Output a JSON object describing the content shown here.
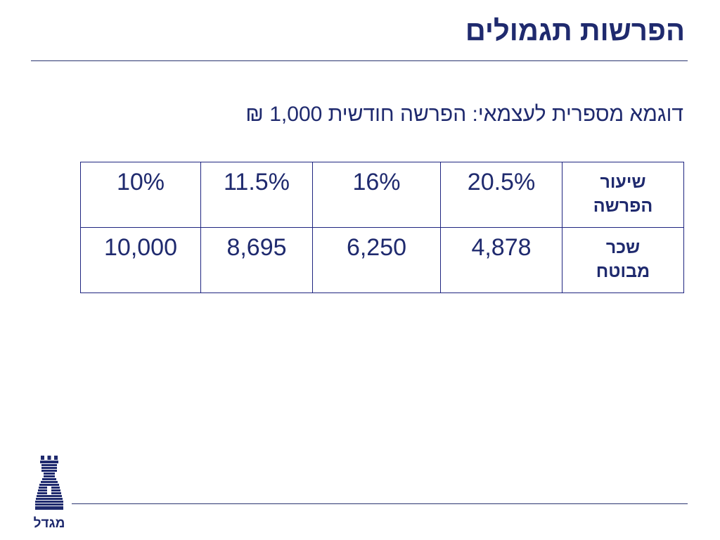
{
  "slide": {
    "title": "הפרשות תגמולים",
    "subtitle": "דוגמא מספרית לעצמאי: הפרשה חודשית 1,000 ₪"
  },
  "table": {
    "rows": [
      {
        "header_lines": [
          "שיעור",
          "הפרשה"
        ],
        "values_rtl": [
          "20.5%",
          "16%",
          "11.5%",
          "10%"
        ]
      },
      {
        "header_lines": [
          "שכר",
          "מבוטח"
        ],
        "values_rtl": [
          "4,878",
          "6,250",
          "8,695",
          "10,000"
        ]
      }
    ]
  },
  "logo": {
    "text": "מגדל",
    "icon": "tower-icon",
    "color": "#1f2a6e"
  }
}
